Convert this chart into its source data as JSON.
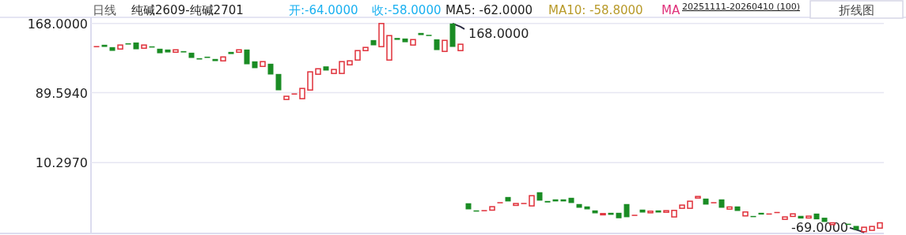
{
  "chart_data": {
    "type": "candlestick",
    "title": "日线",
    "subtitle": "纯碱2609-纯碱2701",
    "annotations": [
      "开:-64.0000",
      "收:-58.0000",
      "MA5: -62.0000",
      "MA10: -58.8000",
      "MA",
      "20251111-20260410 (100)",
      "折线图",
      "168.0000",
      "-69.0000"
    ],
    "categories": [
      null,
      null,
      null,
      null,
      null,
      null,
      null,
      null,
      null,
      null,
      null,
      null,
      null,
      null,
      null,
      null,
      null,
      null,
      null,
      null,
      null,
      null,
      null,
      null,
      null,
      null,
      null,
      null,
      null,
      null,
      null,
      null,
      null,
      null,
      null,
      null,
      null,
      null,
      null,
      null,
      null,
      null,
      null,
      null,
      null,
      null,
      null,
      null,
      null,
      null,
      null,
      null,
      null,
      null,
      null,
      null,
      null,
      null,
      null,
      null,
      null,
      null,
      null,
      null,
      null,
      null,
      null,
      null,
      null,
      null,
      null,
      null,
      null,
      null,
      null,
      null,
      null,
      null,
      null,
      null,
      null,
      null,
      null,
      null,
      null,
      null,
      null,
      null,
      null,
      null,
      null,
      null,
      null,
      null,
      null,
      null,
      null,
      null,
      null,
      null
    ],
    "ohlc": [
      [
        141.8,
        141.8,
        141.8,
        141.8
      ],
      [
        143.9,
        143.9,
        141.5,
        141.5
      ],
      [
        141.2,
        141.2,
        137.0,
        137.0
      ],
      [
        139.1,
        143.6,
        139.1,
        143.6
      ],
      [
        145.6,
        145.6,
        144.2,
        144.2
      ],
      [
        146.5,
        146.5,
        138.8,
        138.8
      ],
      [
        140.0,
        143.6,
        140.0,
        143.6
      ],
      [
        142.1,
        142.1,
        141.5,
        141.5
      ],
      [
        139.4,
        139.4,
        134.3,
        134.3
      ],
      [
        138.5,
        138.5,
        135.2,
        135.2
      ],
      [
        135.5,
        138.2,
        135.5,
        138.2
      ],
      [
        136.7,
        136.7,
        135.2,
        135.2
      ],
      [
        134.9,
        134.9,
        129.0,
        129.0
      ],
      [
        128.7,
        128.7,
        127.2,
        127.2
      ],
      [
        130.4,
        130.4,
        129.0,
        129.0
      ],
      [
        127.8,
        127.8,
        125.4,
        125.4
      ],
      [
        125.7,
        130.1,
        125.7,
        130.1
      ],
      [
        135.8,
        135.8,
        133.4,
        133.4
      ],
      [
        135.5,
        138.2,
        135.5,
        138.2
      ],
      [
        138.5,
        138.5,
        121.8,
        121.8
      ],
      [
        125.1,
        125.1,
        117.4,
        117.4
      ],
      [
        119.4,
        124.8,
        119.4,
        124.8
      ],
      [
        122.4,
        122.4,
        110.2,
        110.2
      ],
      [
        110.8,
        110.8,
        92.3,
        92.3
      ],
      [
        81.9,
        85.5,
        81.9,
        85.5
      ],
      [
        88.1,
        88.1,
        88.1,
        88.1
      ],
      [
        82.8,
        94.4,
        82.8,
        94.4
      ],
      [
        92.6,
        113.2,
        92.6,
        113.2
      ],
      [
        110.5,
        116.7,
        110.5,
        116.7
      ],
      [
        119.4,
        119.4,
        114.7,
        114.7
      ],
      [
        111.4,
        115.9,
        111.4,
        115.9
      ],
      [
        111.4,
        124.8,
        111.4,
        124.8
      ],
      [
        121.2,
        125.7,
        121.2,
        125.7
      ],
      [
        126.6,
        137.3,
        126.6,
        137.3
      ],
      [
        137.3,
        140.9,
        137.3,
        140.9
      ],
      [
        149.2,
        149.2,
        143.3,
        143.3
      ],
      [
        141.8,
        168.0,
        141.8,
        168.0
      ],
      [
        126.6,
        154.3,
        126.6,
        154.3
      ],
      [
        151.6,
        151.6,
        149.5,
        149.5
      ],
      [
        151.0,
        151.0,
        146.8,
        146.8
      ],
      [
        143.6,
        149.8,
        143.6,
        149.8
      ],
      [
        157.3,
        157.3,
        154.9,
        154.9
      ],
      [
        155.2,
        155.2,
        154.0,
        154.0
      ],
      [
        150.1,
        150.1,
        137.9,
        137.9
      ],
      [
        136.4,
        148.9,
        136.4,
        148.9
      ],
      [
        168.0,
        168.0,
        141.5,
        141.5
      ],
      [
        137.3,
        144.5,
        137.3,
        144.5
      ],
      [
        -35.8,
        -35.8,
        -42.7,
        -42.7
      ],
      [
        -43.9,
        -43.9,
        -44.5,
        -44.5
      ],
      [
        -44.2,
        -44.2,
        -44.2,
        -44.2
      ],
      [
        -43.6,
        -39.7,
        -43.6,
        -39.7
      ],
      [
        -35.2,
        -35.2,
        -35.2,
        -35.2
      ],
      [
        -28.7,
        -28.7,
        -33.7,
        -33.7
      ],
      [
        -38.2,
        -36.1,
        -38.2,
        -36.1
      ],
      [
        -36.1,
        -36.1,
        -36.1,
        -36.1
      ],
      [
        -38.8,
        -27.2,
        -38.8,
        -27.2
      ],
      [
        -23.3,
        -23.3,
        -32.8,
        -32.8
      ],
      [
        -33.2,
        -33.2,
        -34.9,
        -34.9
      ],
      [
        -31.4,
        -31.4,
        -33.7,
        -33.7
      ],
      [
        -31.4,
        -31.4,
        -33.7,
        -33.7
      ],
      [
        -29.6,
        -29.6,
        -35.5,
        -35.5
      ],
      [
        -36.7,
        -36.7,
        -40.9,
        -40.9
      ],
      [
        -39.4,
        -39.4,
        -42.7,
        -42.7
      ],
      [
        -43.9,
        -43.9,
        -47.2,
        -47.2
      ],
      [
        -48.9,
        -47.5,
        -48.9,
        -47.5
      ],
      [
        -46.6,
        -46.6,
        -48.9,
        -48.9
      ],
      [
        -46.6,
        -46.6,
        -52.8,
        -52.8
      ],
      [
        -36.7,
        -36.7,
        -51.6,
        -51.6
      ],
      [
        -49.5,
        -49.5,
        -49.5,
        -49.5
      ],
      [
        -43.0,
        -43.0,
        -46.3,
        -46.3
      ],
      [
        -46.6,
        -44.8,
        -46.6,
        -44.8
      ],
      [
        -43.9,
        -43.9,
        -46.3,
        -46.3
      ],
      [
        -46.0,
        -44.2,
        -46.0,
        -44.2
      ],
      [
        -51.3,
        -43.9,
        -51.3,
        -43.9
      ],
      [
        -41.5,
        -37.9,
        -41.5,
        -37.9
      ],
      [
        -41.5,
        -33.5,
        -41.5,
        -33.5
      ],
      [
        -29.9,
        -28.1,
        -29.9,
        -28.1
      ],
      [
        -30.5,
        -30.5,
        -37.3,
        -37.3
      ],
      [
        -35.2,
        -35.2,
        -35.2,
        -35.2
      ],
      [
        -31.4,
        -31.4,
        -40.9,
        -40.9
      ],
      [
        -42.4,
        -40.0,
        -42.4,
        -40.0
      ],
      [
        -39.4,
        -39.4,
        -44.5,
        -44.5
      ],
      [
        -50.1,
        -45.7,
        -50.1,
        -45.7
      ],
      [
        -50.2,
        -50.2,
        -50.4,
        -50.4
      ],
      [
        -46.6,
        -46.6,
        -48.6,
        -48.6
      ],
      [
        -48.0,
        -48.0,
        -48.0,
        -48.0
      ],
      [
        -46.3,
        -46.3,
        -46.3,
        -46.3
      ],
      [
        -54.0,
        -51.3,
        -54.0,
        -51.3
      ],
      [
        -50.7,
        -47.8,
        -50.7,
        -47.8
      ],
      [
        -50.1,
        -50.1,
        -53.1,
        -53.1
      ],
      [
        -52.5,
        -50.4,
        -52.5,
        -50.4
      ],
      [
        -47.5,
        -47.5,
        -54.0,
        -54.0
      ],
      [
        -52.2,
        -52.2,
        -57.0,
        -57.0
      ],
      [
        -60.0,
        -58.0,
        -60.0,
        -58.0
      ],
      null,
      [
        -59.0,
        -59.0,
        -59.2,
        -59.2
      ],
      [
        -61.5,
        -61.5,
        -65.9,
        -65.9
      ],
      [
        -68.0,
        -63.0,
        -69.0,
        -63.0
      ],
      [
        -66.5,
        -62.1,
        -66.5,
        -62.1
      ],
      [
        -64.0,
        -58.0,
        -64.0,
        -58.0
      ]
    ],
    "ylim": [
      -70,
      175
    ],
    "yticks": [
      {
        "value": 168,
        "label": "168.0000"
      },
      {
        "value": 89.594,
        "label": "89.5940"
      },
      {
        "value": 10.297,
        "label": "10.2970"
      }
    ],
    "grid": "y",
    "tick_labels": "y"
  }
}
